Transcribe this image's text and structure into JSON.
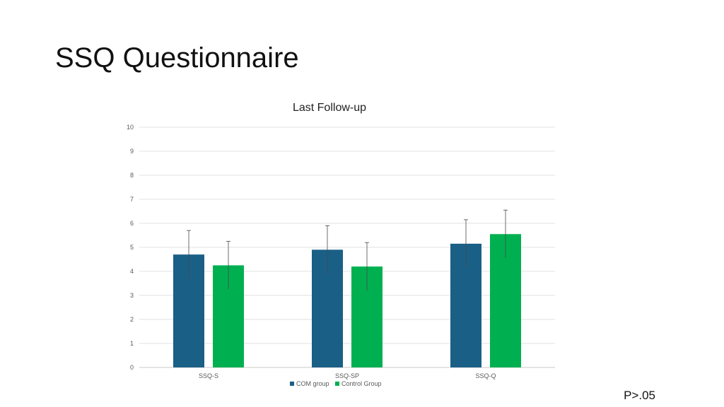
{
  "slide": {
    "title": "SSQ Questionnaire",
    "footnote": "P>.05"
  },
  "chart_data": {
    "type": "bar",
    "title": "Last Follow-up",
    "xlabel": "",
    "ylabel": "",
    "categories": [
      "SSQ-S",
      "SSQ-SP",
      "SSQ-Q"
    ],
    "series": [
      {
        "name": "COM group",
        "color": "#1a5f86",
        "values": [
          4.7,
          4.9,
          5.15
        ],
        "error": [
          1.0,
          1.0,
          1.0
        ]
      },
      {
        "name": "Control Group",
        "color": "#00b050",
        "values": [
          4.25,
          4.2,
          5.55
        ],
        "error": [
          1.0,
          1.0,
          1.0
        ]
      }
    ],
    "ylim": [
      0,
      10
    ],
    "yticks": [
      0,
      1,
      2,
      3,
      4,
      5,
      6,
      7,
      8,
      9,
      10
    ],
    "grid": true,
    "legend": "bottom"
  }
}
